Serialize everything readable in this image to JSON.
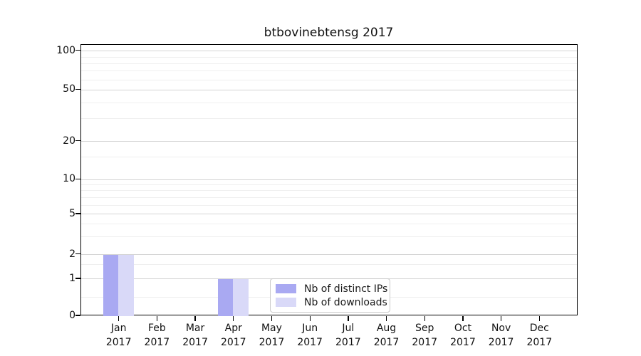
{
  "chart_data": {
    "type": "bar",
    "title": "btbovinebtensg 2017",
    "categories": [
      "Jan",
      "Feb",
      "Mar",
      "Apr",
      "May",
      "Jun",
      "Jul",
      "Aug",
      "Sep",
      "Oct",
      "Nov",
      "Dec"
    ],
    "category_year_label": "2017",
    "series": [
      {
        "name": "Nb of distinct IPs",
        "color": "#a9a9f2",
        "values": [
          2,
          0,
          0,
          1,
          0,
          0,
          0,
          0,
          0,
          0,
          0,
          0
        ]
      },
      {
        "name": "Nb of downloads",
        "color": "#d9d9f8",
        "values": [
          2,
          0,
          0,
          1,
          0,
          0,
          0,
          0,
          0,
          0,
          0,
          0
        ]
      }
    ],
    "yticks": [
      0,
      1,
      2,
      5,
      10,
      20,
      50,
      100
    ],
    "ylim": [
      0,
      110
    ],
    "xlabel": "",
    "ylabel": "",
    "yscale": "symlog",
    "grid": "horizontal major+minor",
    "legend_position": "lower center",
    "colors": {
      "spine": "#000000",
      "grid_major": "#d4d4d4",
      "grid_minor": "#efefef",
      "background": "#ffffff"
    }
  }
}
